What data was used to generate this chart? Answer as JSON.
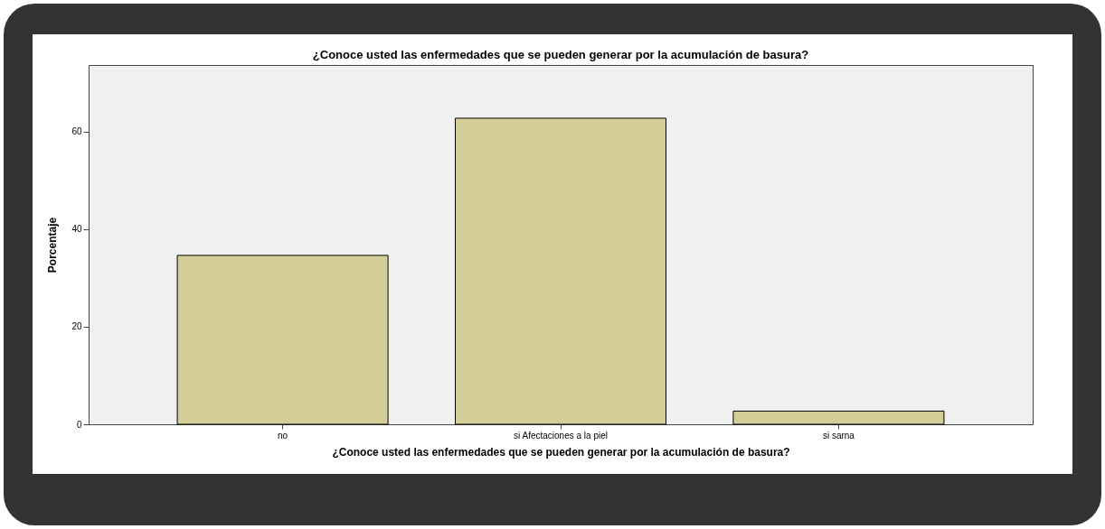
{
  "chart_data": {
    "type": "bar",
    "title": "¿Conoce usted las enfermedades que se pueden generar por la acumulación de basura?",
    "xlabel": "¿Conoce usted las enfermedades que se pueden generar por la acumulación de basura?",
    "ylabel": "Porcentaje",
    "categories": [
      "no",
      "si Afectaciones a la piel",
      "si sarna"
    ],
    "values": [
      34.6,
      62.7,
      2.7
    ],
    "color": "#d3cd98",
    "ylim": [
      0,
      73.6
    ],
    "yticks": [
      0,
      20,
      40,
      60
    ],
    "grid": false
  }
}
